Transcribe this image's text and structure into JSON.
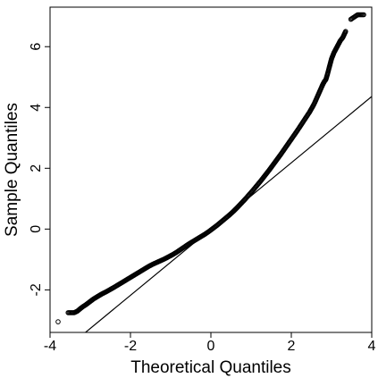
{
  "chart_data": {
    "type": "scatter",
    "title": "",
    "xlabel": "Theoretical Quantiles",
    "ylabel": "Sample Quantiles",
    "xlim": [
      -4.0,
      4.0
    ],
    "ylim": [
      -3.4,
      7.3
    ],
    "x_ticks": [
      -4,
      -2,
      0,
      2,
      4
    ],
    "x_tick_labels": [
      "-4",
      "-2",
      "0",
      "2",
      "4"
    ],
    "y_ticks": [
      -2,
      0,
      2,
      4,
      6
    ],
    "y_tick_labels": [
      "-2",
      "0",
      "2",
      "4",
      "6"
    ],
    "grid": false,
    "legend": "none",
    "point_color": "#000000",
    "line_color": "#000000",
    "series": [
      {
        "kind": "qq-points",
        "marker": "open-circle",
        "x": [
          -3.8,
          -3.55,
          -3.4,
          -3.32,
          -3.25,
          -3.18,
          -3.12,
          -3.07,
          -3.02,
          -2.97,
          -2.92,
          -2.87,
          -2.82,
          -2.77,
          -2.72,
          -2.66,
          -2.6,
          -2.52,
          -2.44,
          -2.35,
          -2.25,
          -2.15,
          -2.05,
          -1.95,
          -1.85,
          -1.75,
          -1.65,
          -1.55,
          -1.45,
          -1.35,
          -1.25,
          -1.15,
          -1.05,
          -0.95,
          -0.85,
          -0.75,
          -0.65,
          -0.55,
          -0.45,
          -0.35,
          -0.25,
          -0.15,
          -0.05,
          0.05,
          0.15,
          0.25,
          0.35,
          0.45,
          0.55,
          0.65,
          0.75,
          0.85,
          0.95,
          1.05,
          1.15,
          1.25,
          1.35,
          1.45,
          1.55,
          1.65,
          1.75,
          1.85,
          1.95,
          2.05,
          2.15,
          2.25,
          2.35,
          2.45,
          2.52,
          2.58,
          2.63,
          2.68,
          2.73,
          2.78,
          2.82,
          2.86,
          2.9,
          2.94,
          2.97,
          3.0,
          3.03,
          3.06,
          3.1,
          3.14,
          3.18,
          3.22,
          3.28,
          3.35,
          3.48,
          3.65,
          3.8
        ],
        "y": [
          -3.05,
          -2.75,
          -2.75,
          -2.7,
          -2.62,
          -2.55,
          -2.5,
          -2.45,
          -2.4,
          -2.35,
          -2.3,
          -2.26,
          -2.22,
          -2.18,
          -2.14,
          -2.1,
          -2.06,
          -2.0,
          -1.94,
          -1.87,
          -1.79,
          -1.71,
          -1.63,
          -1.55,
          -1.47,
          -1.39,
          -1.31,
          -1.23,
          -1.16,
          -1.1,
          -1.04,
          -0.98,
          -0.91,
          -0.84,
          -0.76,
          -0.67,
          -0.58,
          -0.49,
          -0.41,
          -0.33,
          -0.25,
          -0.17,
          -0.08,
          0.02,
          0.12,
          0.23,
          0.34,
          0.45,
          0.57,
          0.7,
          0.84,
          0.98,
          1.13,
          1.28,
          1.44,
          1.6,
          1.77,
          1.94,
          2.12,
          2.3,
          2.48,
          2.67,
          2.86,
          3.05,
          3.24,
          3.44,
          3.64,
          3.84,
          4.0,
          4.15,
          4.3,
          4.45,
          4.6,
          4.75,
          4.85,
          4.92,
          5.1,
          5.3,
          5.45,
          5.6,
          5.7,
          5.8,
          5.9,
          6.0,
          6.1,
          6.2,
          6.3,
          6.5,
          6.9,
          7.05,
          7.05
        ]
      },
      {
        "kind": "qq-reference-line",
        "x": [
          -4.0,
          4.0
        ],
        "y": [
          -4.36,
          4.36
        ]
      }
    ]
  }
}
